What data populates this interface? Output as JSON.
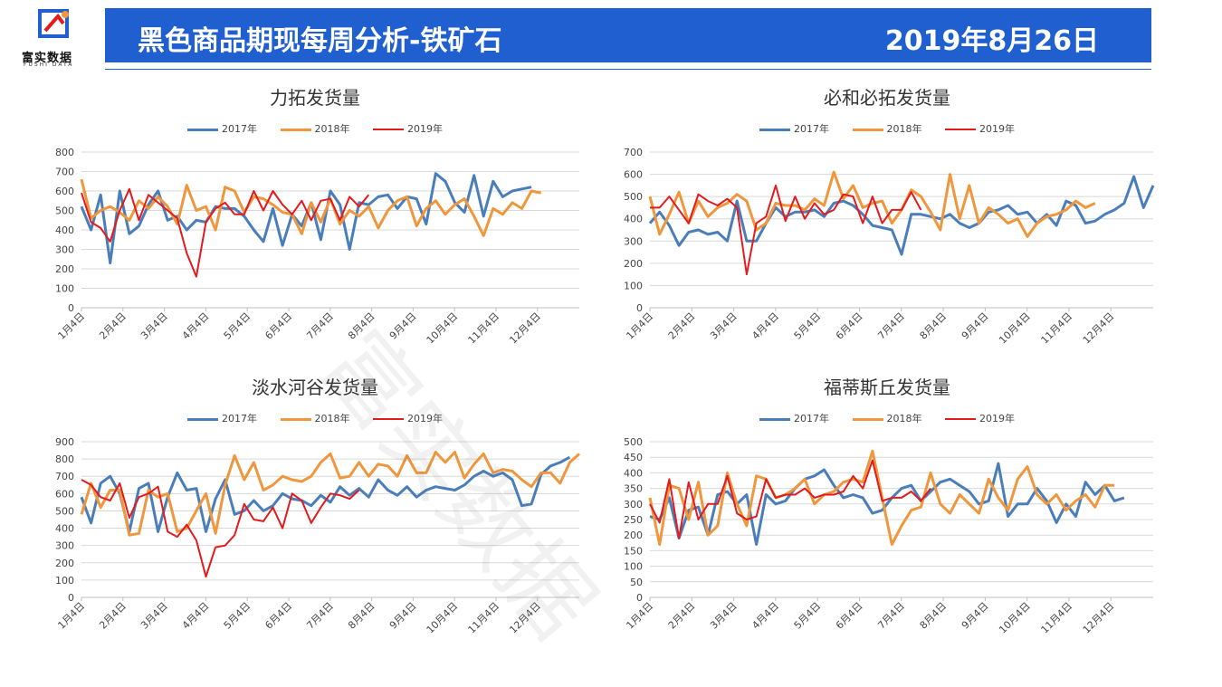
{
  "header": {
    "logo_text": "富实数据",
    "logo_sub": "FUSHI DATA",
    "title": "黑色商品期现每周分析-铁矿石",
    "date": "2019年8月26日"
  },
  "watermark": "富实数据",
  "colors": {
    "s2017": "#4a7ebb",
    "s2018": "#f0963c",
    "s2019": "#e41a1c",
    "header": "#1f5fcf"
  },
  "chart_data": [
    {
      "type": "line",
      "title": "力拓发货量",
      "x_tick_labels": [
        "1月4日",
        "2月4日",
        "3月4日",
        "4月4日",
        "5月4日",
        "6月4日",
        "7月4日",
        "8月4日",
        "9月4日",
        "10月4日",
        "11月4日",
        "12月4日"
      ],
      "ylim": [
        0,
        800
      ],
      "yticks": [
        0,
        100,
        200,
        300,
        400,
        500,
        600,
        700,
        800
      ],
      "x_range_weeks": [
        1,
        53
      ],
      "series": [
        {
          "name": "2017年",
          "x_start": 1,
          "values": [
            520,
            400,
            580,
            230,
            600,
            380,
            420,
            530,
            600,
            450,
            470,
            400,
            450,
            440,
            520,
            510,
            510,
            470,
            400,
            340,
            510,
            320,
            480,
            420,
            540,
            350,
            600,
            530,
            300,
            540,
            530,
            570,
            580,
            510,
            570,
            560,
            430,
            690,
            650,
            540,
            490,
            680,
            470,
            650,
            570,
            600,
            610,
            620
          ]
        },
        {
          "name": "2018年",
          "x_start": 1,
          "values": [
            660,
            460,
            500,
            520,
            490,
            450,
            550,
            510,
            570,
            520,
            430,
            630,
            500,
            520,
            400,
            620,
            600,
            490,
            570,
            560,
            530,
            490,
            480,
            380,
            540,
            440,
            560,
            430,
            500,
            470,
            520,
            410,
            500,
            550,
            570,
            420,
            510,
            550,
            480,
            530,
            560,
            470,
            370,
            510,
            480,
            540,
            510,
            600,
            590
          ]
        },
        {
          "name": "2019年",
          "x_start": 1,
          "values": [
            590,
            440,
            410,
            340,
            500,
            610,
            450,
            580,
            540,
            500,
            460,
            280,
            160,
            440,
            510,
            540,
            480,
            480,
            600,
            500,
            600,
            530,
            480,
            550,
            450,
            550,
            560,
            450,
            570,
            520,
            580
          ]
        }
      ]
    },
    {
      "type": "line",
      "title": "必和必拓发货量",
      "x_tick_labels": [
        "1月4日",
        "2月4日",
        "3月4日",
        "4月4日",
        "5月4日",
        "6月4日",
        "7月4日",
        "8月4日",
        "9月4日",
        "10月4日",
        "11月4日",
        "12月4日"
      ],
      "ylim": [
        0,
        700
      ],
      "yticks": [
        0,
        100,
        200,
        300,
        400,
        500,
        600,
        700
      ],
      "x_range_weeks": [
        1,
        53
      ],
      "series": [
        {
          "name": "2017年",
          "x_start": 1,
          "values": [
            380,
            430,
            370,
            280,
            340,
            350,
            330,
            340,
            300,
            480,
            300,
            300,
            380,
            450,
            410,
            430,
            430,
            440,
            410,
            470,
            480,
            460,
            420,
            370,
            360,
            350,
            240,
            420,
            420,
            410,
            400,
            420,
            380,
            360,
            380,
            430,
            440,
            460,
            420,
            430,
            380,
            420,
            370,
            480,
            460,
            380,
            390,
            420,
            440,
            470,
            590,
            450,
            550
          ]
        },
        {
          "name": "2018年",
          "x_start": 1,
          "values": [
            500,
            330,
            420,
            520,
            380,
            480,
            410,
            450,
            470,
            510,
            480,
            350,
            380,
            470,
            460,
            460,
            440,
            490,
            460,
            610,
            490,
            550,
            450,
            470,
            480,
            380,
            440,
            530,
            500,
            430,
            350,
            600,
            400,
            550,
            380,
            450,
            420,
            380,
            400,
            320,
            380,
            410,
            420,
            440,
            480,
            450,
            470
          ]
        },
        {
          "name": "2019年",
          "x_start": 1,
          "values": [
            450,
            450,
            500,
            440,
            380,
            510,
            480,
            460,
            490,
            450,
            150,
            380,
            410,
            550,
            390,
            500,
            400,
            470,
            420,
            440,
            510,
            500,
            380,
            500,
            380,
            440,
            440,
            520,
            440
          ]
        }
      ]
    },
    {
      "type": "line",
      "title": "淡水河谷发货量",
      "x_tick_labels": [
        "1月4日",
        "2月4日",
        "3月4日",
        "4月4日",
        "5月4日",
        "6月4日",
        "7月4日",
        "8月4日",
        "9月4日",
        "10月4日",
        "11月4日",
        "12月4日"
      ],
      "ylim": [
        0,
        900
      ],
      "yticks": [
        0,
        100,
        200,
        300,
        400,
        500,
        600,
        700,
        800,
        900
      ],
      "x_range_weeks": [
        1,
        53
      ],
      "series": [
        {
          "name": "2017年",
          "x_start": 1,
          "values": [
            580,
            430,
            660,
            700,
            600,
            380,
            630,
            660,
            380,
            580,
            720,
            620,
            630,
            380,
            570,
            680,
            480,
            500,
            560,
            500,
            530,
            600,
            570,
            560,
            530,
            590,
            550,
            640,
            590,
            630,
            580,
            680,
            620,
            590,
            640,
            580,
            620,
            640,
            630,
            620,
            650,
            700,
            730,
            700,
            720,
            680,
            530,
            540,
            710,
            760,
            780,
            810
          ]
        },
        {
          "name": "2018年",
          "x_start": 1,
          "values": [
            480,
            660,
            520,
            620,
            620,
            360,
            370,
            620,
            580,
            600,
            380,
            400,
            500,
            600,
            370,
            650,
            820,
            680,
            780,
            620,
            650,
            700,
            680,
            670,
            700,
            780,
            830,
            690,
            700,
            780,
            700,
            770,
            760,
            700,
            820,
            720,
            720,
            840,
            780,
            840,
            690,
            770,
            830,
            720,
            740,
            730,
            680,
            640,
            720,
            720,
            660,
            780,
            830
          ]
        },
        {
          "name": "2019年",
          "x_start": 1,
          "values": [
            680,
            650,
            580,
            560,
            660,
            460,
            580,
            600,
            640,
            380,
            350,
            420,
            330,
            120,
            290,
            300,
            360,
            540,
            450,
            440,
            520,
            400,
            600,
            560,
            430,
            520,
            600,
            590,
            570,
            620
          ]
        }
      ]
    },
    {
      "type": "line",
      "title": "福蒂斯丘发货量",
      "x_tick_labels": [
        "1月4日",
        "2月4日",
        "3月4日",
        "4月4日",
        "5月4日",
        "6月4日",
        "7月4日",
        "8月4日",
        "9月4日",
        "10月4日",
        "11月4日",
        "12月4日"
      ],
      "ylim": [
        0,
        500
      ],
      "yticks": [
        0,
        50,
        100,
        150,
        200,
        250,
        300,
        350,
        400,
        450,
        500
      ],
      "x_range_weeks": [
        1,
        53
      ],
      "series": [
        {
          "name": "2017年",
          "x_start": 1,
          "values": [
            260,
            250,
            320,
            190,
            280,
            290,
            200,
            330,
            340,
            300,
            330,
            170,
            330,
            300,
            310,
            350,
            380,
            390,
            410,
            360,
            320,
            330,
            320,
            270,
            280,
            320,
            350,
            360,
            310,
            340,
            370,
            380,
            360,
            340,
            300,
            310,
            430,
            260,
            300,
            300,
            350,
            310,
            240,
            300,
            260,
            370,
            330,
            360,
            310,
            320
          ]
        },
        {
          "name": "2018年",
          "x_start": 1,
          "values": [
            320,
            170,
            360,
            350,
            250,
            370,
            200,
            230,
            400,
            300,
            230,
            390,
            380,
            320,
            330,
            350,
            380,
            300,
            330,
            340,
            370,
            380,
            370,
            470,
            320,
            170,
            230,
            280,
            290,
            400,
            300,
            270,
            330,
            300,
            270,
            380,
            320,
            280,
            380,
            420,
            330,
            300,
            330,
            280,
            310,
            330,
            290,
            360,
            360
          ]
        },
        {
          "name": "2019年",
          "x_start": 1,
          "values": [
            300,
            240,
            380,
            190,
            370,
            250,
            300,
            300,
            390,
            270,
            250,
            260,
            380,
            320,
            330,
            330,
            350,
            320,
            330,
            330,
            340,
            390,
            350,
            440,
            310,
            320,
            320,
            340,
            310,
            350
          ]
        }
      ]
    }
  ]
}
